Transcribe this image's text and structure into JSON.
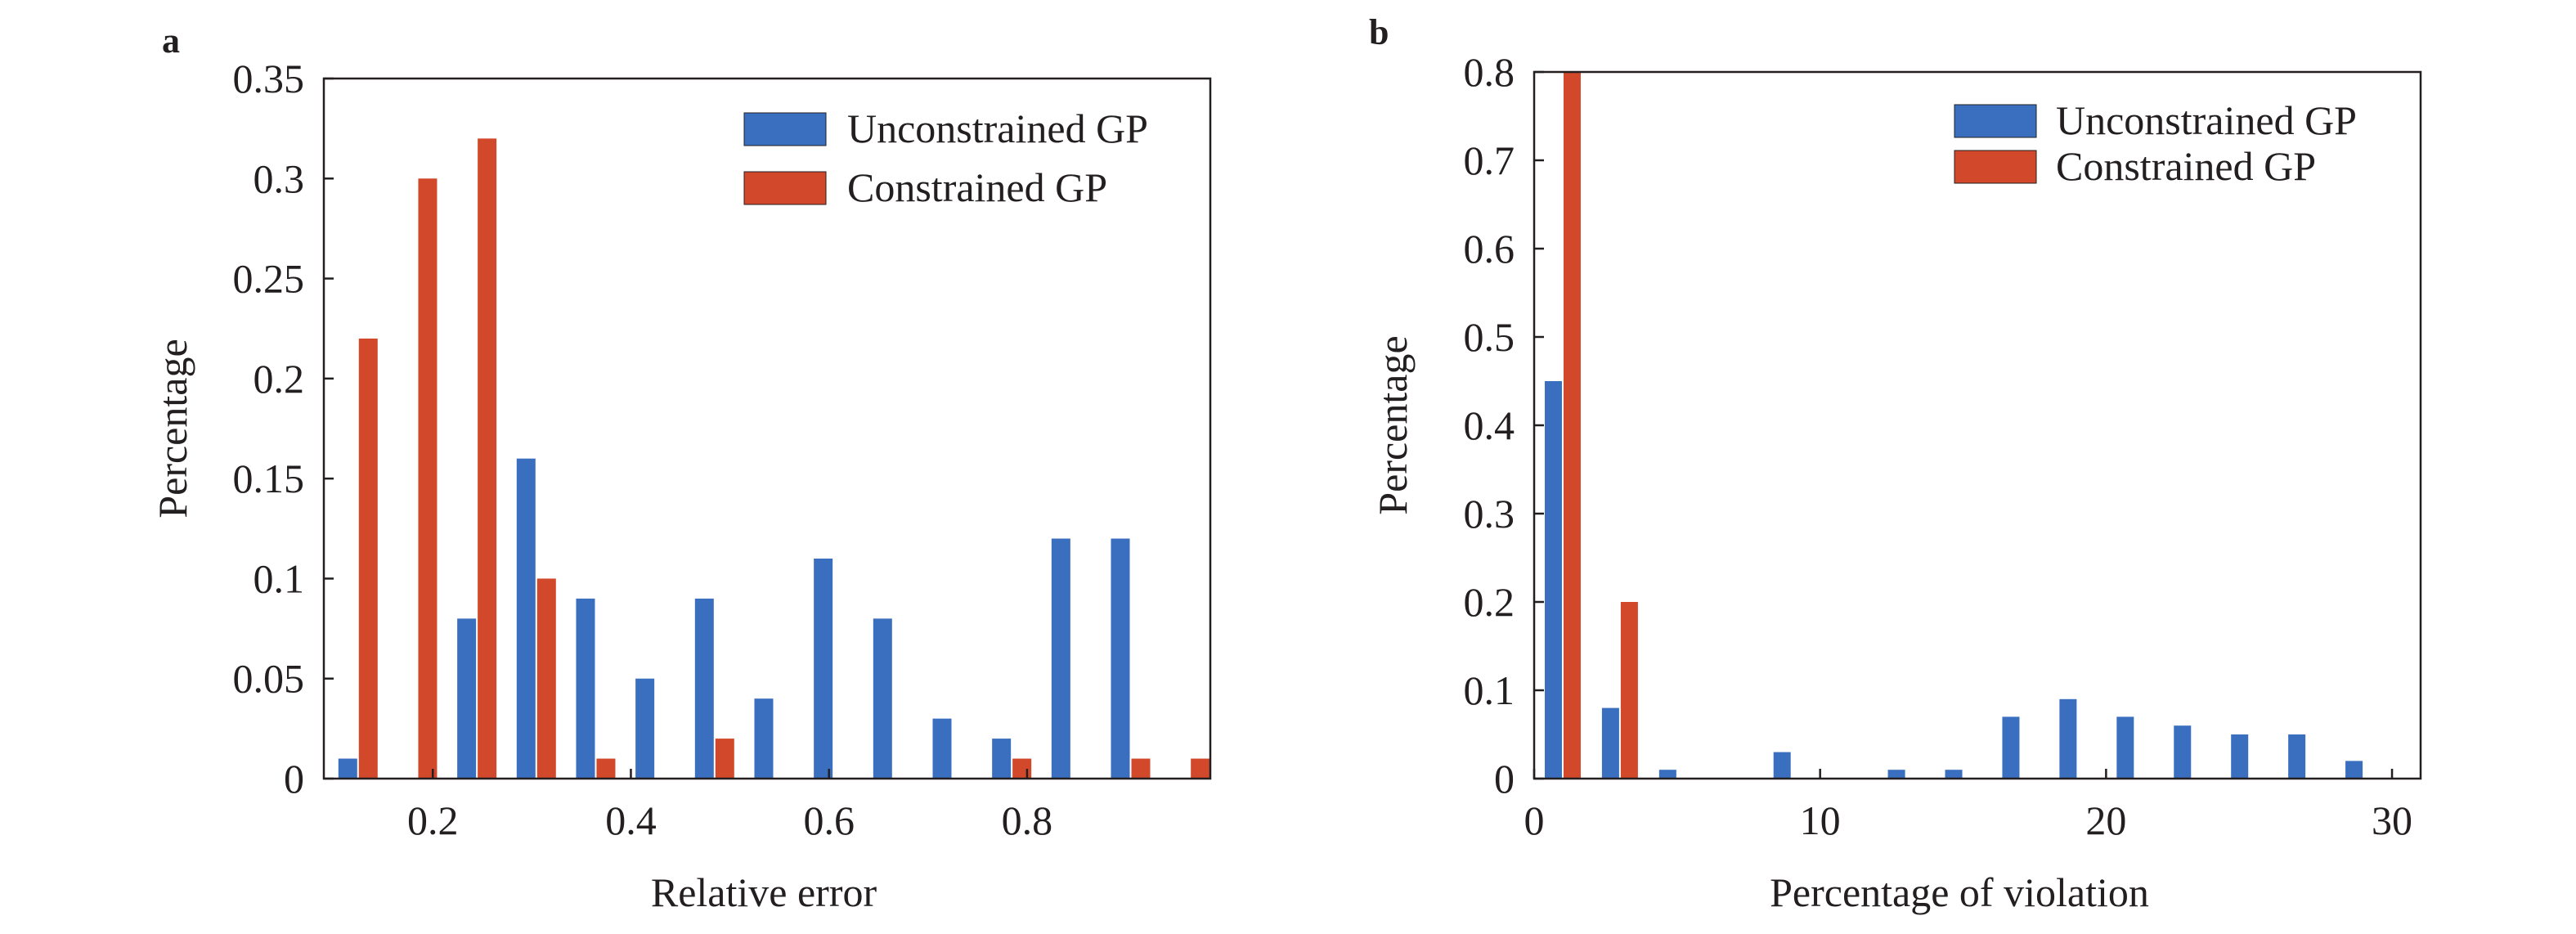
{
  "chart_data": [
    {
      "type": "bar",
      "panel": "a",
      "xlabel": "Relative error",
      "ylabel": "Percentage",
      "xlim": [
        0.09,
        0.985
      ],
      "ylim": [
        0,
        0.35
      ],
      "xticks": [
        0.2,
        0.4,
        0.6,
        0.8
      ],
      "xtick_labels": [
        "0.2",
        "0.4",
        "0.6",
        "0.8"
      ],
      "yticks": [
        0,
        0.05,
        0.1,
        0.15,
        0.2,
        0.25,
        0.3,
        0.35
      ],
      "ytick_labels": [
        "0",
        "0.05",
        "0.1",
        "0.15",
        "0.2",
        "0.25",
        "0.3",
        "0.35"
      ],
      "grid": false,
      "legend_position": "top-right",
      "bin_centers": [
        0.1245,
        0.1845,
        0.2445,
        0.3045,
        0.3645,
        0.4245,
        0.4845,
        0.5445,
        0.6045,
        0.6645,
        0.7245,
        0.7845,
        0.8445,
        0.9045,
        0.9645
      ],
      "series": [
        {
          "name": "Unconstrained GP",
          "color": "#3a6fbf",
          "values": [
            0.01,
            0,
            0.08,
            0.16,
            0.09,
            0.05,
            0.09,
            0.04,
            0.11,
            0.08,
            0.03,
            0.02,
            0.12,
            0.12,
            0
          ]
        },
        {
          "name": "Constrained GP",
          "color": "#d1492a",
          "values": [
            0.22,
            0.3,
            0.32,
            0.1,
            0.01,
            0,
            0.02,
            0,
            0,
            0,
            0,
            0.01,
            0,
            0.01,
            0.01
          ]
        }
      ]
    },
    {
      "type": "bar",
      "panel": "b",
      "xlabel": "Percentage of violation",
      "ylabel": "Percentage",
      "xlim": [
        0,
        31
      ],
      "ylim": [
        0,
        0.8
      ],
      "xticks": [
        0,
        10,
        20,
        30
      ],
      "xtick_labels": [
        "0",
        "10",
        "20",
        "30"
      ],
      "yticks": [
        0,
        0.1,
        0.2,
        0.3,
        0.4,
        0.5,
        0.6,
        0.7,
        0.8
      ],
      "ytick_labels": [
        "0",
        "0.1",
        "0.2",
        "0.3",
        "0.4",
        "0.5",
        "0.6",
        "0.7",
        "0.8"
      ],
      "grid": false,
      "legend_position": "top-right",
      "bin_centers": [
        1,
        3,
        5,
        7,
        9,
        11,
        13,
        15,
        17,
        19,
        21,
        23,
        25,
        27,
        29
      ],
      "series": [
        {
          "name": "Unconstrained GP",
          "color": "#3a6fbf",
          "values": [
            0.45,
            0.08,
            0.01,
            0,
            0.03,
            0,
            0.01,
            0.01,
            0.07,
            0.09,
            0.07,
            0.06,
            0.05,
            0.05,
            0.02
          ]
        },
        {
          "name": "Constrained GP",
          "color": "#d1492a",
          "values": [
            0.8,
            0.2,
            0,
            0,
            0,
            0,
            0,
            0,
            0,
            0,
            0,
            0,
            0,
            0,
            0
          ]
        }
      ]
    }
  ]
}
